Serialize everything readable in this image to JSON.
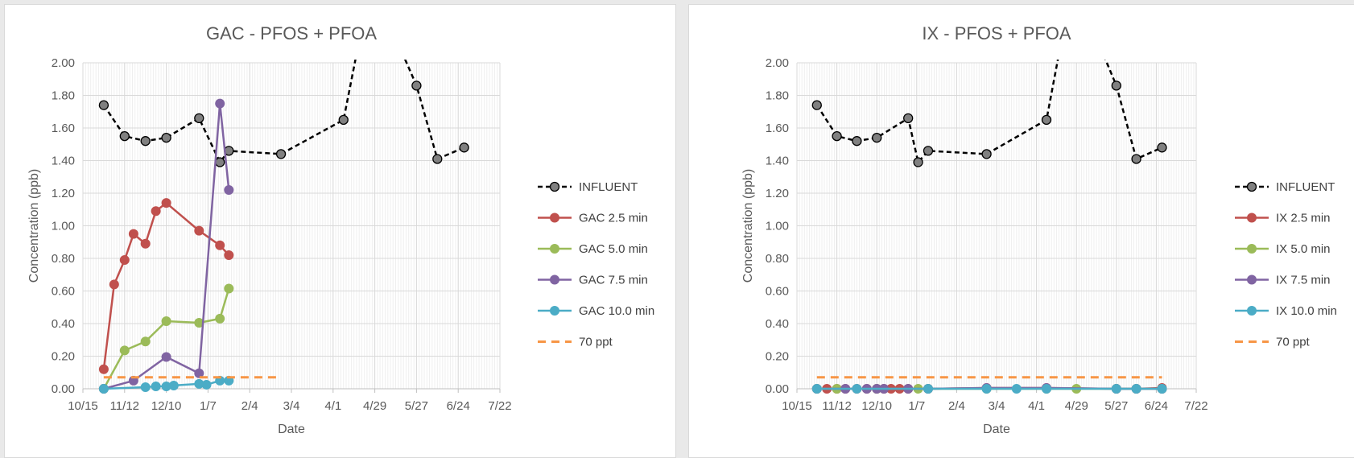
{
  "chart_data": [
    {
      "type": "line",
      "title": "GAC - PFOS + PFOA",
      "xlabel": "Date",
      "ylabel": "Concentration (ppb)",
      "ylim": [
        0,
        2
      ],
      "y_ticks": [
        "0.00",
        "0.20",
        "0.40",
        "0.60",
        "0.80",
        "1.00",
        "1.20",
        "1.40",
        "1.60",
        "1.80",
        "2.00"
      ],
      "x_tick_labels": [
        "10/15",
        "11/12",
        "12/10",
        "1/7",
        "2/4",
        "3/4",
        "4/1",
        "4/29",
        "5/27",
        "6/24",
        "7/22"
      ],
      "grid": true,
      "legend_position": "right",
      "series": [
        {
          "name": "INFLUENT",
          "color": "#000000",
          "marker_color": "#808080",
          "dashed": true,
          "x": [
            "10/29",
            "11/12",
            "11/26",
            "12/10",
            "1/1",
            "1/15",
            "1/21",
            "2/25",
            "4/8",
            "4/22",
            "5/6",
            "5/27",
            "6/10",
            "6/28"
          ],
          "y": [
            1.74,
            1.55,
            1.52,
            1.54,
            1.66,
            1.39,
            1.46,
            1.44,
            1.65,
            2.3,
            2.3,
            1.86,
            1.41,
            1.48
          ]
        },
        {
          "name": "GAC 2.5 min",
          "color": "#c0504d",
          "marker_color": "#c0504d",
          "dashed": false,
          "x": [
            "10/29",
            "11/5",
            "11/12",
            "11/18",
            "11/26",
            "12/3",
            "12/10",
            "1/1",
            "1/15",
            "1/21"
          ],
          "y": [
            0.12,
            0.64,
            0.79,
            0.95,
            0.89,
            1.09,
            1.14,
            0.97,
            0.88,
            0.82
          ]
        },
        {
          "name": "GAC 5.0 min",
          "color": "#9bbb59",
          "marker_color": "#9bbb59",
          "dashed": false,
          "x": [
            "10/29",
            "11/12",
            "11/26",
            "12/10",
            "1/1",
            "1/15",
            "1/21"
          ],
          "y": [
            0.0,
            0.235,
            0.29,
            0.415,
            0.405,
            0.43,
            0.615
          ]
        },
        {
          "name": "GAC 7.5 min",
          "color": "#8064a2",
          "marker_color": "#8064a2",
          "dashed": false,
          "x": [
            "10/29",
            "11/18",
            "12/10",
            "1/1",
            "1/15",
            "1/21"
          ],
          "y": [
            0.0,
            0.05,
            0.195,
            0.095,
            1.75,
            1.22
          ]
        },
        {
          "name": "GAC 10.0 min",
          "color": "#4bacc6",
          "marker_color": "#4bacc6",
          "dashed": false,
          "x": [
            "10/29",
            "11/26",
            "12/3",
            "12/10",
            "12/15",
            "1/1",
            "1/6",
            "1/15",
            "1/21"
          ],
          "y": [
            0.0,
            0.01,
            0.015,
            0.015,
            0.02,
            0.03,
            0.025,
            0.05,
            0.05
          ]
        },
        {
          "name": "70 ppt",
          "color": "#f79646",
          "marker_color": null,
          "dashed": true,
          "x": [
            "10/29",
            "2/25"
          ],
          "y": [
            0.07,
            0.07
          ]
        }
      ]
    },
    {
      "type": "line",
      "title": "IX - PFOS + PFOA",
      "xlabel": "Date",
      "ylabel": "Concentration (ppb)",
      "ylim": [
        0,
        2
      ],
      "y_ticks": [
        "0.00",
        "0.20",
        "0.40",
        "0.60",
        "0.80",
        "1.00",
        "1.20",
        "1.40",
        "1.60",
        "1.80",
        "2.00"
      ],
      "x_tick_labels": [
        "10/15",
        "11/12",
        "12/10",
        "1/7",
        "2/4",
        "3/4",
        "4/1",
        "4/29",
        "5/27",
        "6/24",
        "7/22"
      ],
      "grid": true,
      "legend_position": "right",
      "series": [
        {
          "name": "INFLUENT",
          "color": "#000000",
          "marker_color": "#808080",
          "dashed": true,
          "x": [
            "10/29",
            "11/12",
            "11/26",
            "12/10",
            "1/1",
            "1/8",
            "1/15",
            "2/25",
            "4/8",
            "4/22",
            "5/6",
            "5/27",
            "6/10",
            "6/28"
          ],
          "y": [
            1.74,
            1.55,
            1.52,
            1.54,
            1.66,
            1.39,
            1.46,
            1.44,
            1.65,
            2.3,
            2.3,
            1.86,
            1.41,
            1.48
          ]
        },
        {
          "name": "IX 2.5 min",
          "color": "#c0504d",
          "marker_color": "#c0504d",
          "dashed": false,
          "x": [
            "10/29",
            "11/5",
            "11/12",
            "11/18",
            "11/26",
            "12/3",
            "12/10",
            "12/15",
            "12/20",
            "12/26",
            "1/1",
            "1/15",
            "2/25",
            "4/8",
            "5/27",
            "6/10",
            "6/28"
          ],
          "y": [
            0,
            0,
            0,
            0,
            0,
            0,
            0,
            0,
            0,
            0,
            0,
            0,
            0.005,
            0.005,
            0,
            0,
            0.005
          ]
        },
        {
          "name": "IX 5.0 min",
          "color": "#9bbb59",
          "marker_color": "#9bbb59",
          "dashed": false,
          "x": [
            "10/29",
            "11/12",
            "12/10",
            "1/8",
            "1/15",
            "2/25",
            "4/8",
            "4/29",
            "5/27",
            "6/10",
            "6/28"
          ],
          "y": [
            0,
            0,
            0,
            0,
            0,
            0,
            0,
            0,
            0,
            0,
            0
          ]
        },
        {
          "name": "IX 7.5 min",
          "color": "#8064a2",
          "marker_color": "#8064a2",
          "dashed": false,
          "x": [
            "10/29",
            "11/18",
            "12/3",
            "12/10",
            "12/15",
            "1/1",
            "1/15",
            "2/25",
            "4/8",
            "5/27",
            "6/10",
            "6/28"
          ],
          "y": [
            0,
            0,
            0,
            0,
            0,
            0,
            0,
            0.005,
            0.005,
            0,
            0,
            0
          ]
        },
        {
          "name": "IX 10.0 min",
          "color": "#4bacc6",
          "marker_color": "#4bacc6",
          "dashed": false,
          "x": [
            "10/29",
            "11/26",
            "1/15",
            "2/25",
            "3/18",
            "4/8",
            "5/27",
            "6/10",
            "6/28"
          ],
          "y": [
            0,
            0,
            0,
            0,
            0,
            0,
            0,
            0,
            0
          ]
        },
        {
          "name": "70 ppt",
          "color": "#f79646",
          "marker_color": null,
          "dashed": true,
          "x": [
            "10/29",
            "6/28"
          ],
          "y": [
            0.07,
            0.07
          ]
        }
      ]
    }
  ]
}
